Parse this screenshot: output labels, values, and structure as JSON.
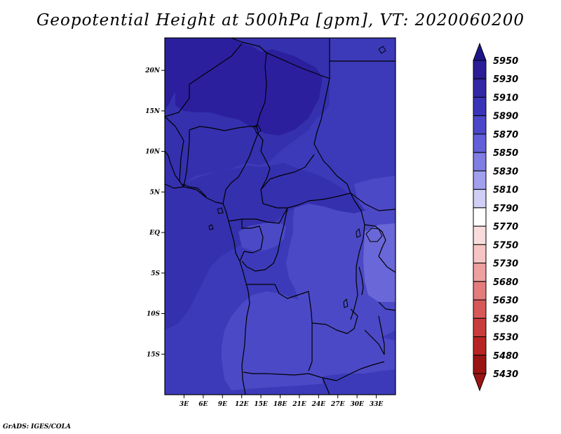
{
  "title": "Geopotential Height at 500hPa [gpm], VT: 2020060200",
  "footer": "GrADS: IGES/COLA",
  "map": {
    "lat_range": [
      -20,
      24
    ],
    "lon_range": [
      0,
      36
    ],
    "lat_labels": [
      {
        "lat": 20,
        "label": "20N"
      },
      {
        "lat": 15,
        "label": "15N"
      },
      {
        "lat": 10,
        "label": "10N"
      },
      {
        "lat": 5,
        "label": "5N"
      },
      {
        "lat": 0,
        "label": "EQ"
      },
      {
        "lat": -5,
        "label": "5S"
      },
      {
        "lat": -10,
        "label": "10S"
      },
      {
        "lat": -15,
        "label": "15S"
      }
    ],
    "lon_labels": [
      {
        "lon": 3,
        "label": "3E"
      },
      {
        "lon": 6,
        "label": "6E"
      },
      {
        "lon": 9,
        "label": "9E"
      },
      {
        "lon": 12,
        "label": "12E"
      },
      {
        "lon": 15,
        "label": "15E"
      },
      {
        "lon": 18,
        "label": "18E"
      },
      {
        "lon": 21,
        "label": "21E"
      },
      {
        "lon": 24,
        "label": "24E"
      },
      {
        "lon": 27,
        "label": "27E"
      },
      {
        "lon": 30,
        "label": "30E"
      },
      {
        "lon": 33,
        "label": "33E"
      }
    ]
  },
  "colorbar": {
    "levels": [
      "5950",
      "5930",
      "5910",
      "5890",
      "5870",
      "5850",
      "5830",
      "5810",
      "5790",
      "5770",
      "5750",
      "5730",
      "5680",
      "5630",
      "5580",
      "5530",
      "5480",
      "5430"
    ],
    "colors": [
      "#1e1688",
      "#2b1d96",
      "#3228a5",
      "#3a35b8",
      "#4a48c8",
      "#6260d8",
      "#7f7ee4",
      "#a2a0ee",
      "#cfcff6",
      "#ffffff",
      "#fbdcdc",
      "#f7c4c4",
      "#eea0a0",
      "#e47c7c",
      "#d75858",
      "#c93c3c",
      "#b82424",
      "#9b1414"
    ]
  },
  "fill_colors": {
    "c5910": "#2b1f9e",
    "c5890": "#3530ae",
    "c5870": "#3c3ab9",
    "c5850": "#4c49c6",
    "c5830": "#6a67d8"
  }
}
